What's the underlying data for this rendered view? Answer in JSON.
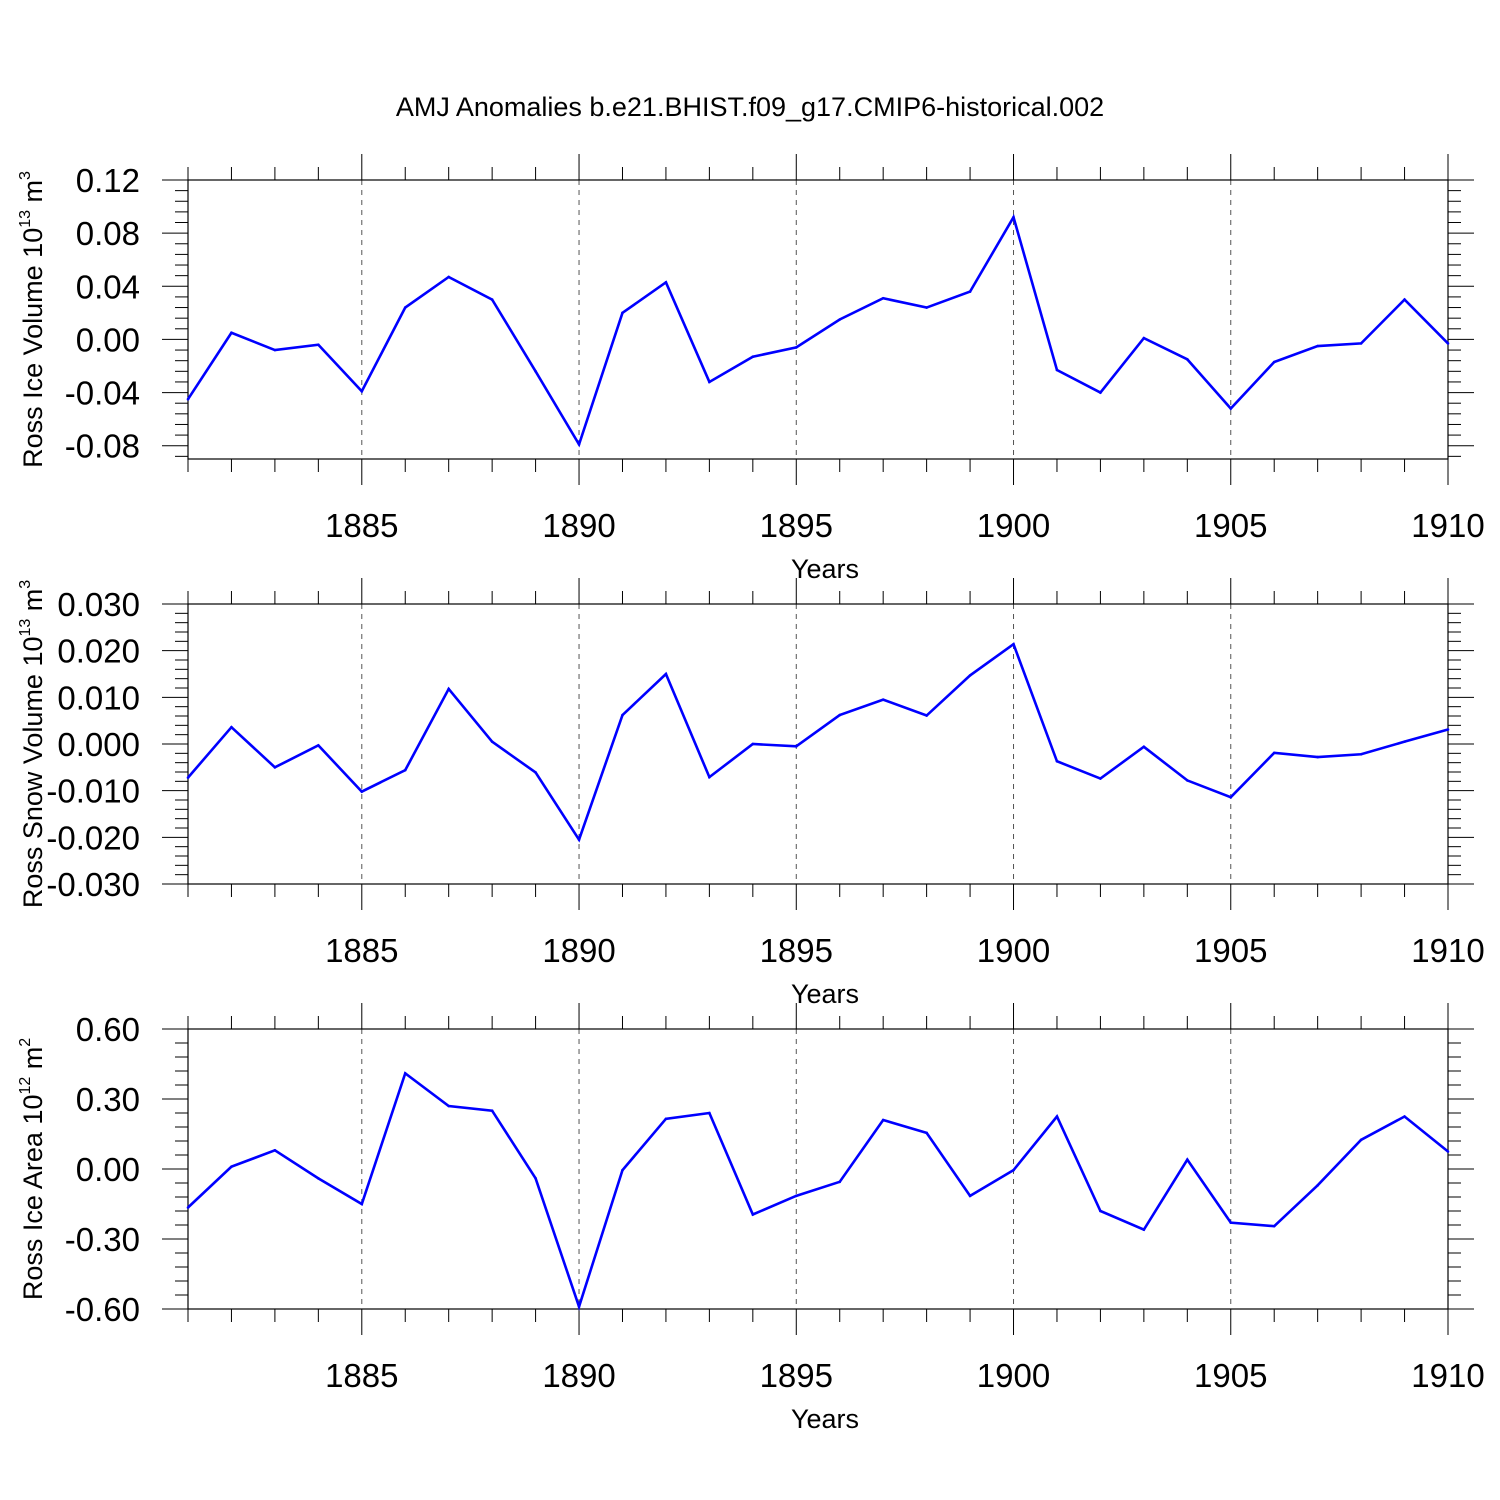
{
  "title": "AMJ Anomalies b.e21.BHIST.f09_g17.CMIP6-historical.002",
  "chart_data": [
    {
      "type": "line",
      "title": "AMJ Anomalies b.e21.BHIST.f09_g17.CMIP6-historical.002",
      "xlabel": "Years",
      "ylabel_main": "Ross Ice Volume 10",
      "ylabel_exp": "13",
      "ylabel_unit": " m",
      "ylabel_unit_exp": "3",
      "xlim": [
        1881,
        1910
      ],
      "ylim": [
        -0.09,
        0.12
      ],
      "yticks": [
        -0.08,
        -0.04,
        0.0,
        0.04,
        0.08,
        0.12
      ],
      "ytick_labels": [
        "-0.08",
        "-0.04",
        "0.00",
        "0.04",
        "0.08",
        "0.12"
      ],
      "xticks": [
        1885,
        1890,
        1895,
        1900,
        1905,
        1910
      ],
      "xtick_labels": [
        "1885",
        "1890",
        "1895",
        "1900",
        "1905",
        "1910"
      ],
      "grid": "vertical dashed at major x ticks",
      "line_color": "#0000ff",
      "series": [
        {
          "name": "Ross Ice Volume",
          "x": [
            1881,
            1882,
            1883,
            1884,
            1885,
            1886,
            1887,
            1888,
            1889,
            1890,
            1891,
            1892,
            1893,
            1894,
            1895,
            1896,
            1897,
            1898,
            1899,
            1900,
            1901,
            1902,
            1903,
            1904,
            1905,
            1906,
            1907,
            1908,
            1909,
            1910
          ],
          "values": [
            -0.045,
            0.005,
            -0.008,
            -0.004,
            -0.039,
            0.024,
            0.047,
            0.03,
            -0.024,
            -0.079,
            0.02,
            0.043,
            -0.032,
            -0.013,
            -0.006,
            0.015,
            0.031,
            0.024,
            0.036,
            0.092,
            -0.023,
            -0.04,
            0.001,
            -0.015,
            -0.052,
            -0.017,
            -0.005,
            -0.003,
            0.03,
            -0.003
          ]
        }
      ]
    },
    {
      "type": "line",
      "xlabel": "Years",
      "ylabel_main": "Ross Snow Volume 10",
      "ylabel_exp": "13",
      "ylabel_unit": " m",
      "ylabel_unit_exp": "3",
      "xlim": [
        1881,
        1910
      ],
      "ylim": [
        -0.03,
        0.03
      ],
      "yticks": [
        -0.03,
        -0.02,
        -0.01,
        0.0,
        0.01,
        0.02,
        0.03
      ],
      "ytick_labels": [
        "-0.030",
        "-0.020",
        "-0.010",
        "0.000",
        "0.010",
        "0.020",
        "0.030"
      ],
      "xticks": [
        1885,
        1890,
        1895,
        1900,
        1905,
        1910
      ],
      "xtick_labels": [
        "1885",
        "1890",
        "1895",
        "1900",
        "1905",
        "1910"
      ],
      "grid": "vertical dashed at major x ticks",
      "line_color": "#0000ff",
      "series": [
        {
          "name": "Ross Snow Volume",
          "x": [
            1881,
            1882,
            1883,
            1884,
            1885,
            1886,
            1887,
            1888,
            1889,
            1890,
            1891,
            1892,
            1893,
            1894,
            1895,
            1896,
            1897,
            1898,
            1899,
            1900,
            1901,
            1902,
            1903,
            1904,
            1905,
            1906,
            1907,
            1908,
            1909,
            1910
          ],
          "values": [
            -0.0072,
            0.0036,
            -0.005,
            -0.0003,
            -0.0102,
            -0.0056,
            0.0118,
            0.0005,
            -0.0061,
            -0.0205,
            0.0062,
            0.015,
            -0.0071,
            0.0,
            -0.0005,
            0.0062,
            0.0095,
            0.0061,
            0.0147,
            0.0214,
            -0.0037,
            -0.0074,
            -0.0006,
            -0.0078,
            -0.0114,
            -0.0019,
            -0.0028,
            -0.0022,
            0.0005,
            0.0031
          ]
        }
      ]
    },
    {
      "type": "line",
      "xlabel": "Years",
      "ylabel_main": "Ross Ice Area 10",
      "ylabel_exp": "12",
      "ylabel_unit": " m",
      "ylabel_unit_exp": "2",
      "xlim": [
        1881,
        1910
      ],
      "ylim": [
        -0.6,
        0.6
      ],
      "yticks": [
        -0.6,
        -0.3,
        0.0,
        0.3,
        0.6
      ],
      "ytick_labels": [
        "-0.60",
        "-0.30",
        "0.00",
        "0.30",
        "0.60"
      ],
      "xticks": [
        1885,
        1890,
        1895,
        1900,
        1905,
        1910
      ],
      "xtick_labels": [
        "1885",
        "1890",
        "1895",
        "1900",
        "1905",
        "1910"
      ],
      "grid": "vertical dashed at major x ticks",
      "line_color": "#0000ff",
      "series": [
        {
          "name": "Ross Ice Area",
          "x": [
            1881,
            1882,
            1883,
            1884,
            1885,
            1886,
            1887,
            1888,
            1889,
            1890,
            1891,
            1892,
            1893,
            1894,
            1895,
            1896,
            1897,
            1898,
            1899,
            1900,
            1901,
            1902,
            1903,
            1904,
            1905,
            1906,
            1907,
            1908,
            1909,
            1910
          ],
          "values": [
            -0.165,
            0.01,
            0.08,
            -0.04,
            -0.15,
            0.41,
            0.27,
            0.25,
            -0.04,
            -0.59,
            -0.005,
            0.215,
            0.24,
            -0.195,
            -0.115,
            -0.055,
            0.21,
            0.155,
            -0.115,
            -0.005,
            0.225,
            -0.18,
            -0.26,
            0.04,
            -0.23,
            -0.245,
            -0.07,
            0.125,
            0.225,
            0.075
          ]
        }
      ]
    }
  ]
}
